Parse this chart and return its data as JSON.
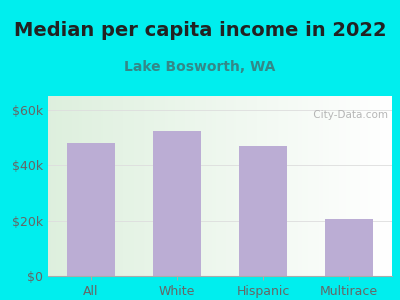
{
  "title": "Median per capita income in 2022",
  "subtitle": "Lake Bosworth, WA",
  "categories": [
    "All",
    "White",
    "Hispanic",
    "Multirace"
  ],
  "values": [
    48000,
    52500,
    47000,
    20500
  ],
  "bar_color": "#bbadd4",
  "title_fontsize": 14,
  "subtitle_fontsize": 10,
  "tick_label_fontsize": 9,
  "title_color": "#222222",
  "subtitle_color": "#338888",
  "axis_label_color": "#666666",
  "background_outer": "#00EEEE",
  "ylim": [
    0,
    65000
  ],
  "yticks": [
    0,
    20000,
    40000,
    60000
  ],
  "ytick_labels": [
    "$0",
    "$20k",
    "$40k",
    "$60k"
  ],
  "watermark": " City-Data.com",
  "watermark_color": "#aaaaaa",
  "grid_color": "#dddddd",
  "bottom_spine_color": "#aaaaaa"
}
